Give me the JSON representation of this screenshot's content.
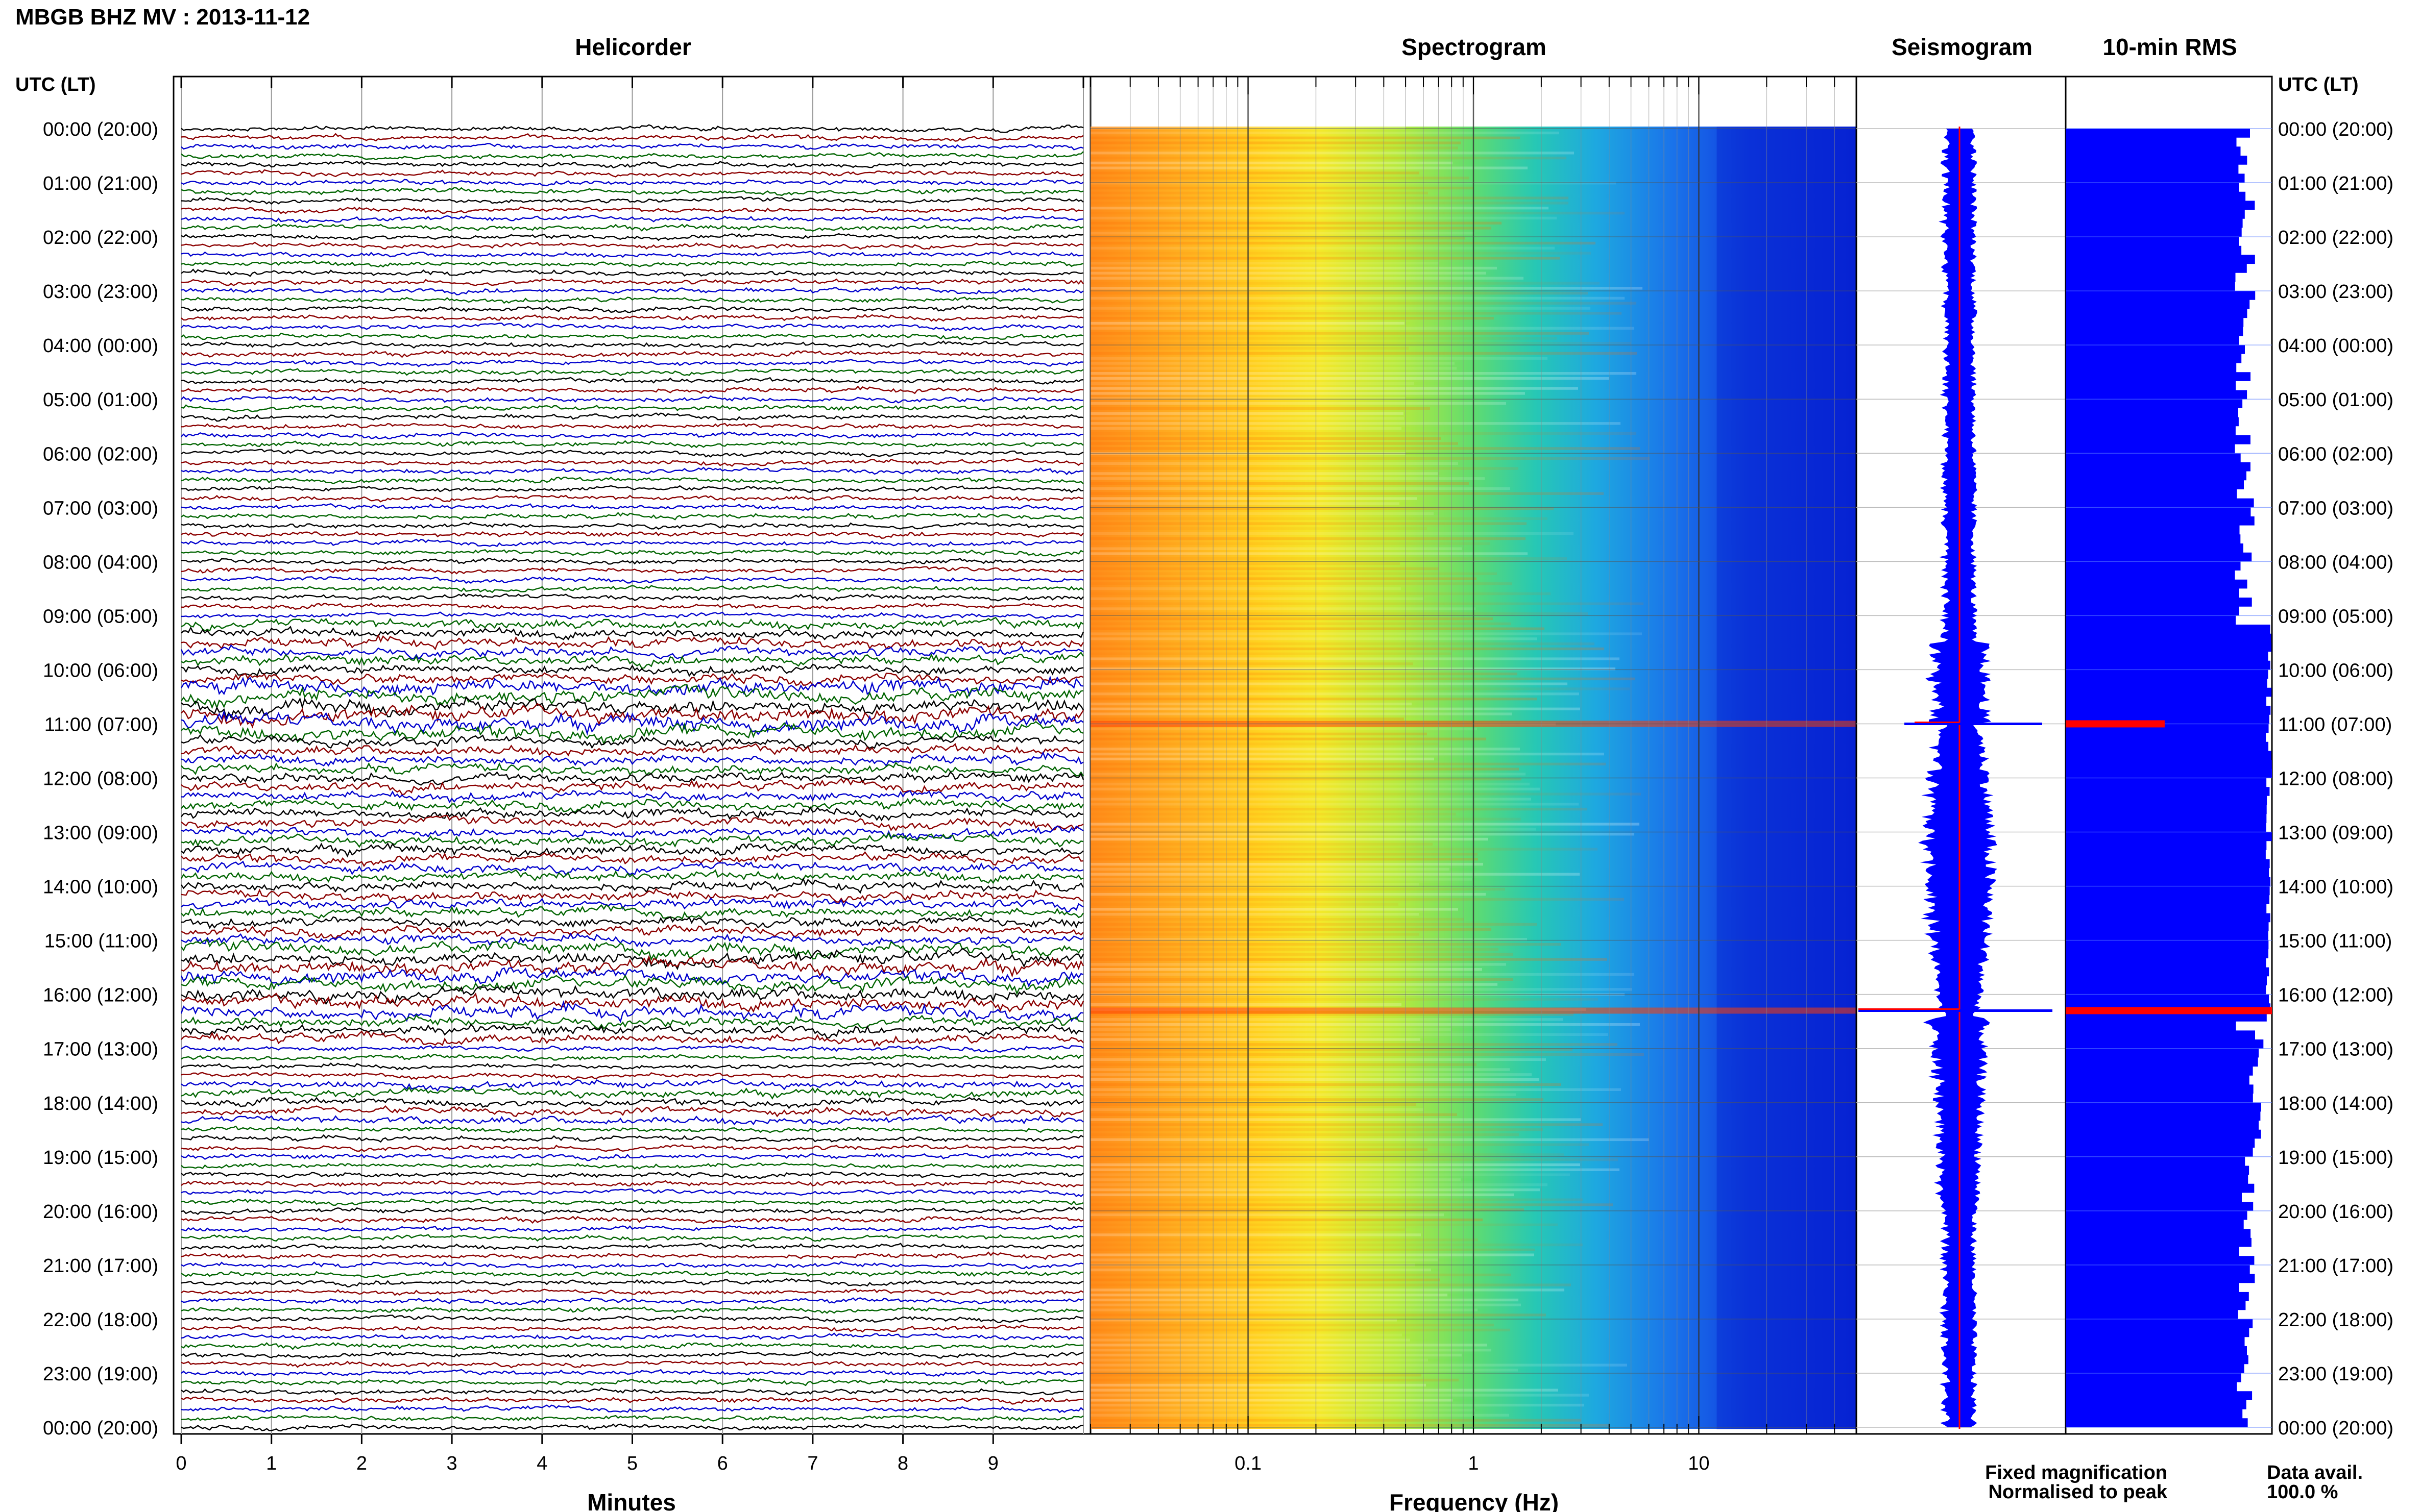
{
  "header": {
    "title": "MBGB BHZ MV : 2013-11-12",
    "utc_label": "UTC (LT)"
  },
  "panels": {
    "helicorder": "Helicorder",
    "spectrogram": "Spectrogram",
    "seismogram": "Seismogram",
    "rms": "10-min RMS"
  },
  "legend": {
    "fixed": "Fixed magnification",
    "normalised": "Normalised to peak",
    "fixed_color": "#0000ff",
    "normalised_color": "#ff0000",
    "data_avail_label": "Data avail.",
    "data_avail_value": "100.0 %"
  },
  "chart_data": {
    "type": "heatmap",
    "time_labels": [
      "00:00 (20:00)",
      "01:00 (21:00)",
      "02:00 (22:00)",
      "03:00 (23:00)",
      "04:00 (00:00)",
      "05:00 (01:00)",
      "06:00 (02:00)",
      "07:00 (03:00)",
      "08:00 (04:00)",
      "09:00 (05:00)",
      "10:00 (06:00)",
      "11:00 (07:00)",
      "12:00 (08:00)",
      "13:00 (09:00)",
      "14:00 (10:00)",
      "15:00 (11:00)",
      "16:00 (12:00)",
      "17:00 (13:00)",
      "18:00 (14:00)",
      "19:00 (15:00)",
      "20:00 (16:00)",
      "21:00 (17:00)",
      "22:00 (18:00)",
      "23:00 (19:00)",
      "00:00 (20:00)"
    ],
    "helicorder": {
      "xlabel": "Minutes",
      "xlim": [
        0,
        10
      ],
      "xticks": [
        "0",
        "1",
        "2",
        "3",
        "4",
        "5",
        "6",
        "7",
        "8",
        "9"
      ],
      "trace_colors": [
        "#000000",
        "#8b0000",
        "#0000cd",
        "#006400"
      ],
      "traces_per_hour": 6
    },
    "spectrogram": {
      "xlabel": "Frequency (Hz)",
      "xscale": "log",
      "xlim": [
        0.02,
        50
      ],
      "xticks": [
        "0.1",
        "1",
        "10"
      ]
    },
    "seismogram": {
      "color": "#0000ff",
      "peak_events_hours": [
        11.0,
        16.3
      ]
    },
    "rms": {
      "color": "#0000ff",
      "highlight_color": "#ff0000",
      "highlights": [
        {
          "hour": 11.0,
          "relative_value": 0.48
        },
        {
          "hour": 16.3,
          "relative_value": 1.0
        }
      ]
    }
  }
}
